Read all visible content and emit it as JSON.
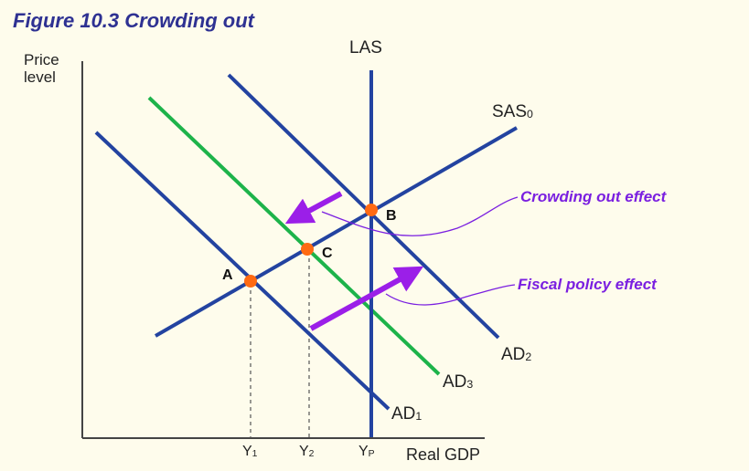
{
  "title": "Figure 10.3  Crowding out",
  "axes": {
    "y_label_line1": "Price",
    "y_label_line2": "level",
    "x_label": "Real GDP"
  },
  "curves": {
    "las": "LAS",
    "sas": {
      "main": "SAS",
      "sub": "0"
    },
    "ad1": {
      "main": "AD",
      "sub": "1"
    },
    "ad2": {
      "main": "AD",
      "sub": "2"
    },
    "ad3": {
      "main": "AD",
      "sub": "3"
    }
  },
  "points": {
    "a": "A",
    "b": "B",
    "c": "C"
  },
  "x_ticks": [
    {
      "main": "Y",
      "sub": "1"
    },
    {
      "main": "Y",
      "sub": "2"
    },
    {
      "main": "Y",
      "sub": "P"
    }
  ],
  "annotations": {
    "crowding": "Crowding out effect",
    "fiscal": "Fiscal policy effect"
  },
  "colors": {
    "curve": "#2343a0",
    "ad3": "#1db34a",
    "point": "#ff6a13",
    "arrow": "#9b1fe8",
    "title": "#2e3192"
  }
}
